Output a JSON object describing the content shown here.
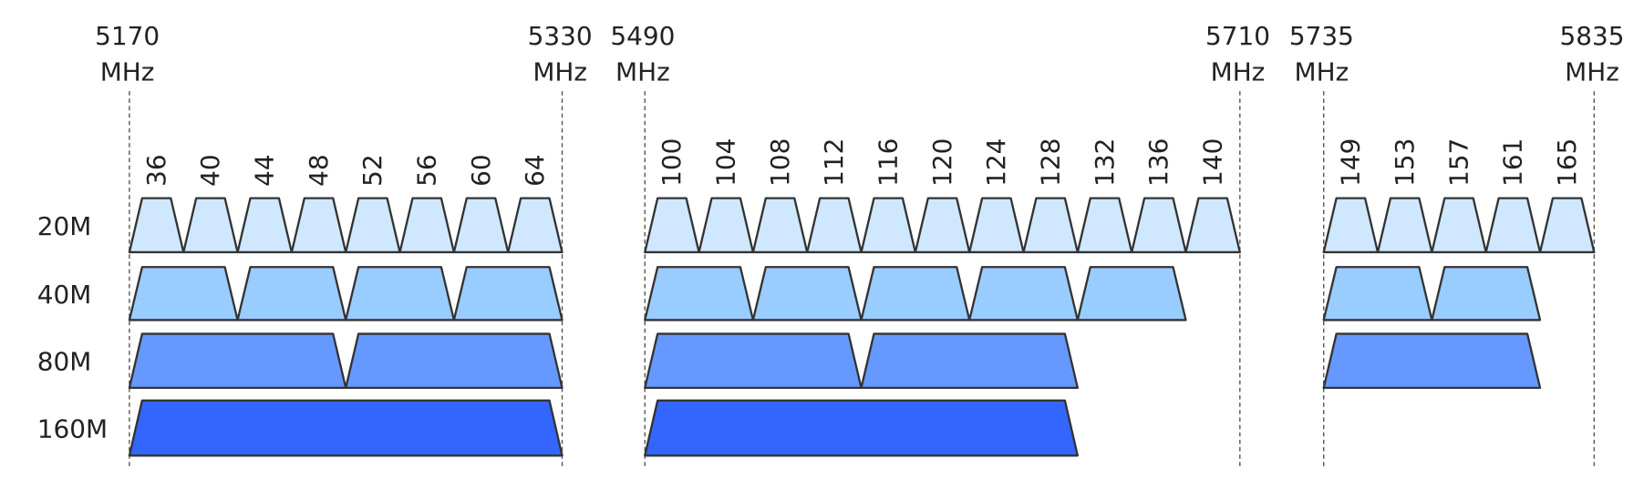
{
  "groups": [
    {
      "start": {
        "freq": "5170",
        "unit": "MHz"
      },
      "end": {
        "freq": "5330",
        "unit": "MHz"
      },
      "channels": [
        "36",
        "40",
        "44",
        "48",
        "52",
        "56",
        "60",
        "64"
      ]
    },
    {
      "start": {
        "freq": "5490",
        "unit": "MHz"
      },
      "end": {
        "freq": "5710",
        "unit": "MHz"
      },
      "channels": [
        "100",
        "104",
        "108",
        "112",
        "116",
        "120",
        "124",
        "128",
        "132",
        "136",
        "140"
      ]
    },
    {
      "start": {
        "freq": "5735",
        "unit": "MHz"
      },
      "end": {
        "freq": "5835",
        "unit": "MHz"
      },
      "channels": [
        "149",
        "153",
        "157",
        "161",
        "165"
      ]
    }
  ],
  "rows": [
    "20M",
    "40M",
    "80M",
    "160M"
  ]
}
